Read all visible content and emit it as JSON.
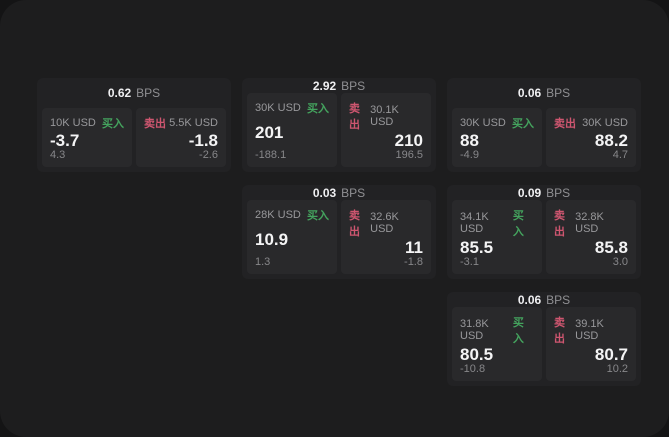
{
  "panel": {
    "bg": "#1d1d1e",
    "backdrop": "#141415"
  },
  "labels": {
    "bps_unit": "BPS",
    "buy": "买入",
    "sell": "卖出"
  },
  "colors": {
    "buy_green": "#44a35e",
    "sell_red": "#cf5670",
    "price_white": "#f4f4f5",
    "label_gray": "#98989b",
    "delta_gray": "#87878a",
    "card_bg": "#222224",
    "tile_bg": "#29292b"
  },
  "cards": [
    {
      "col": 1,
      "row": 1,
      "bps": "0.62",
      "buy": {
        "size": "10K USD",
        "price": "-3.7",
        "delta": "4.3"
      },
      "sell": {
        "size": "5.5K USD",
        "price": "-1.8",
        "delta": "-2.6"
      }
    },
    {
      "col": 2,
      "row": 1,
      "bps": "2.92",
      "buy": {
        "size": "30K USD",
        "price": "201",
        "delta": "-188.1"
      },
      "sell": {
        "size": "30.1K USD",
        "price": "210",
        "delta": "196.5"
      }
    },
    {
      "col": 3,
      "row": 1,
      "bps": "0.06",
      "buy": {
        "size": "30K USD",
        "price": "88",
        "delta": "-4.9"
      },
      "sell": {
        "size": "30K USD",
        "price": "88.2",
        "delta": "4.7"
      }
    },
    {
      "col": 2,
      "row": 2,
      "bps": "0.03",
      "buy": {
        "size": "28K USD",
        "price": "10.9",
        "delta": "1.3"
      },
      "sell": {
        "size": "32.6K USD",
        "price": "11",
        "delta": "-1.8"
      }
    },
    {
      "col": 3,
      "row": 2,
      "bps": "0.09",
      "buy": {
        "size": "34.1K USD",
        "price": "85.5",
        "delta": "-3.1"
      },
      "sell": {
        "size": "32.8K USD",
        "price": "85.8",
        "delta": "3.0"
      }
    },
    {
      "col": 3,
      "row": 3,
      "bps": "0.06",
      "buy": {
        "size": "31.8K USD",
        "price": "80.5",
        "delta": "-10.8"
      },
      "sell": {
        "size": "39.1K USD",
        "price": "80.7",
        "delta": "10.2"
      }
    }
  ]
}
